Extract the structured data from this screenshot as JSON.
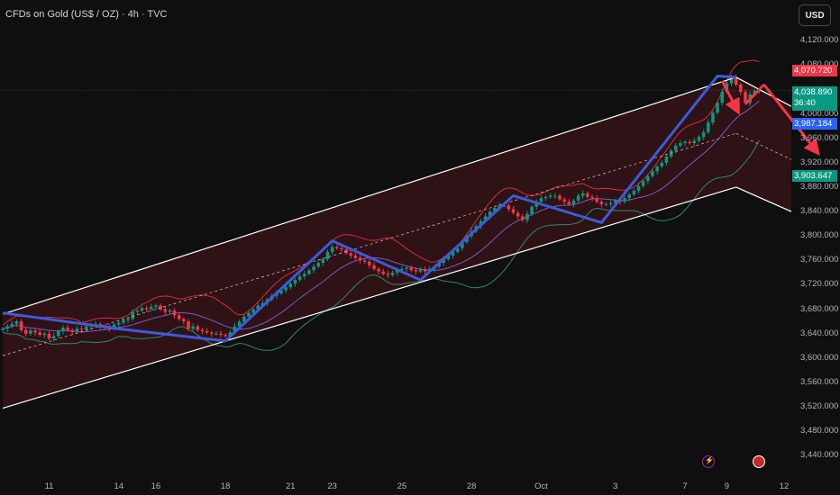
{
  "header": {
    "title": "CFDs on Gold (US$ / OZ) · 4h · TVC",
    "currency": "USD"
  },
  "colors": {
    "up": "#089981",
    "down": "#f23645",
    "channel": "#ffffff",
    "wave": "#3b5bdb",
    "arrow": "#f23645"
  },
  "price_tags": {
    "high": "4,070.720",
    "last": "4,038.890",
    "countdown": "36:40",
    "level_blue": "3,987.184",
    "level_green": "3,903.647"
  },
  "events": [
    "lightning-icon",
    "us-flag-icon"
  ],
  "chart_data": {
    "type": "candlestick",
    "title": "CFDs on Gold (US$ / OZ) · 4h · TVC",
    "xlabel": "",
    "ylabel": "",
    "ylim": [
      3420,
      4160
    ],
    "y_ticks": [
      "4,120.000",
      "4,080.000",
      "4,000.000",
      "3,960.000",
      "3,920.000",
      "3,880.000",
      "3,840.000",
      "3,800.000",
      "3,760.000",
      "3,720.000",
      "3,680.000",
      "3,640.000",
      "3,600.000",
      "3,560.000",
      "3,520.000",
      "3,480.000",
      "3,440.000"
    ],
    "y_tick_values": [
      4120,
      4080,
      4000,
      3960,
      3920,
      3880,
      3840,
      3800,
      3760,
      3720,
      3680,
      3640,
      3600,
      3560,
      3520,
      3480,
      3440
    ],
    "x_ticks": [
      "11",
      "14",
      "16",
      "18",
      "21",
      "23",
      "25",
      "28",
      "Oct",
      "3",
      "7",
      "9",
      "12"
    ],
    "x_tick_bars": [
      10,
      25,
      33,
      48,
      62,
      71,
      86,
      101,
      116,
      132,
      147,
      156,
      171
    ],
    "closes": [
      3648,
      3652,
      3656,
      3660,
      3646,
      3640,
      3645,
      3642,
      3638,
      3640,
      3632,
      3636,
      3644,
      3650,
      3646,
      3643,
      3648,
      3647,
      3652,
      3654,
      3656,
      3652,
      3650,
      3648,
      3655,
      3658,
      3662,
      3664,
      3676,
      3678,
      3682,
      3680,
      3684,
      3686,
      3680,
      3676,
      3678,
      3670,
      3664,
      3660,
      3648,
      3652,
      3646,
      3644,
      3642,
      3640,
      3640,
      3638,
      3636,
      3642,
      3652,
      3660,
      3668,
      3674,
      3680,
      3686,
      3690,
      3696,
      3702,
      3706,
      3711,
      3716,
      3722,
      3728,
      3734,
      3738,
      3744,
      3750,
      3756,
      3762,
      3774,
      3782,
      3780,
      3778,
      3772,
      3768,
      3764,
      3760,
      3758,
      3752,
      3746,
      3742,
      3738,
      3736,
      3740,
      3744,
      3746,
      3748,
      3744,
      3742,
      3746,
      3742,
      3746,
      3750,
      3756,
      3762,
      3768,
      3774,
      3780,
      3790,
      3800,
      3808,
      3816,
      3824,
      3832,
      3840,
      3846,
      3850,
      3850,
      3844,
      3838,
      3832,
      3826,
      3836,
      3848,
      3856,
      3862,
      3864,
      3866,
      3866,
      3860,
      3856,
      3852,
      3858,
      3866,
      3870,
      3864,
      3862,
      3856,
      3852,
      3852,
      3854,
      3858,
      3856,
      3862,
      3868,
      3874,
      3882,
      3890,
      3898,
      3906,
      3914,
      3920,
      3930,
      3940,
      3948,
      3952,
      3954,
      3952,
      3956,
      3962,
      3970,
      3986,
      4002,
      4018,
      4036,
      4050,
      4060,
      4048,
      4036,
      4018,
      4032,
      4038,
      4038
    ],
    "channel_upper": {
      "from": {
        "bar": 0,
        "price": 3672
      },
      "to": {
        "bar": 158,
        "price": 4060
      }
    },
    "channel_lower": {
      "from": {
        "bar": 0,
        "price": 3518
      },
      "to": {
        "bar": 158,
        "price": 3880
      }
    },
    "channel_mid": {
      "from": {
        "bar": 0,
        "price": 3604
      },
      "to": {
        "bar": 158,
        "price": 3968
      }
    },
    "projection_upper": {
      "from": {
        "bar": 158,
        "price": 4060
      },
      "to": {
        "bar": 183,
        "price": 3960
      }
    },
    "projection_lower": {
      "from": {
        "bar": 158,
        "price": 3880
      },
      "to": {
        "bar": 183,
        "price": 3796
      }
    },
    "wave_path": [
      {
        "bar": 0,
        "price": 3674
      },
      {
        "bar": 25,
        "price": 3648
      },
      {
        "bar": 48,
        "price": 3628
      },
      {
        "bar": 71,
        "price": 3792
      },
      {
        "bar": 90,
        "price": 3728
      },
      {
        "bar": 110,
        "price": 3866
      },
      {
        "bar": 129,
        "price": 3822
      },
      {
        "bar": 154,
        "price": 4062
      },
      {
        "bar": 158,
        "price": 4060
      }
    ],
    "forecast_arrows": [
      {
        "from": {
          "bar": 155,
          "price": 4054
        },
        "to": {
          "bar": 158,
          "price": 4010
        }
      },
      {
        "from": {
          "bar": 160,
          "price": 4016
        },
        "to": {
          "bar": 164,
          "price": 4048
        }
      },
      {
        "from": {
          "bar": 164,
          "price": 4048
        },
        "to": {
          "bar": 175,
          "price": 3942
        }
      }
    ],
    "grid": false,
    "legend": "none"
  }
}
